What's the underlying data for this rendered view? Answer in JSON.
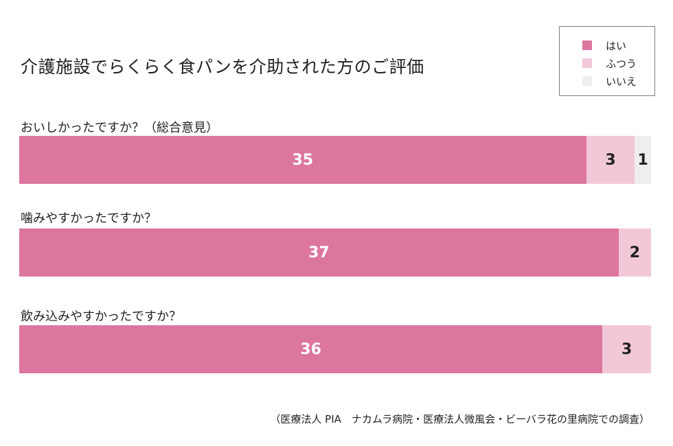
{
  "chart_data": {
    "type": "bar",
    "orientation": "horizontal",
    "stacked": true,
    "title": "介護施設でらくらく食パンを介助された方のご評価",
    "categories": [
      "おいしかったですか？（総合意見）",
      "噛みやすかったですか？",
      "飲み込みやすかったですか？"
    ],
    "series": [
      {
        "name": "はい",
        "values": [
          35,
          37,
          36
        ]
      },
      {
        "name": "ふつう",
        "values": [
          3,
          2,
          3
        ]
      },
      {
        "name": "いいえ",
        "values": [
          1,
          0,
          0
        ]
      }
    ],
    "legend_position": "top-right",
    "grid": false
  },
  "colors": {
    "yes": "#dc769f",
    "neutral": "#f2c8d9",
    "no": "#eeeeee",
    "label_on_dark": "#ffffff",
    "label_on_light": "#222222"
  },
  "source_note": "（医療法人 PIA　ナカムラ病院・医療法人微風会・ビーバラ花の里病院での調査）"
}
